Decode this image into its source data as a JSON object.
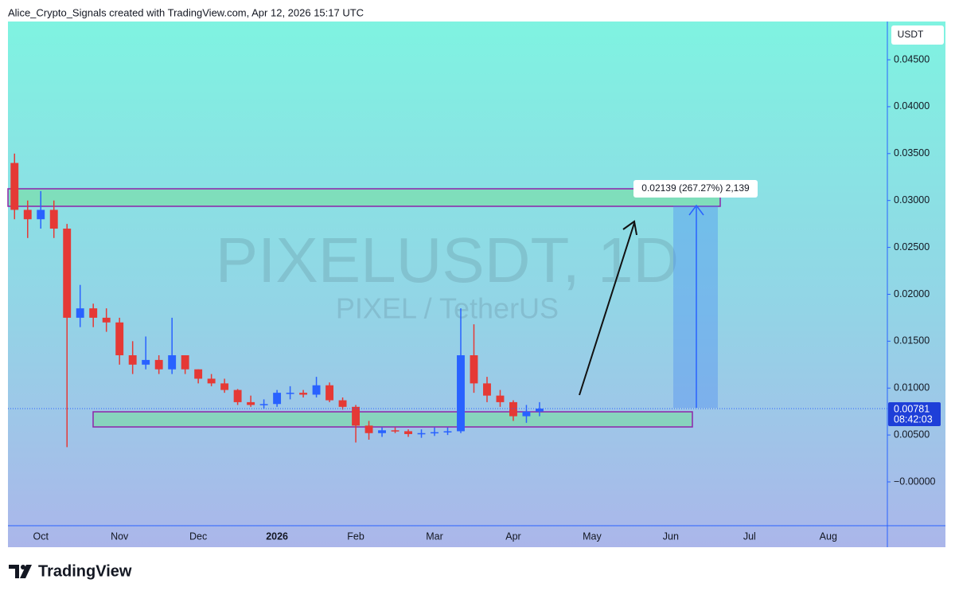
{
  "header": "Alice_Crypto_Signals created with TradingView.com, Apr 12, 2026 15:17 UTC",
  "footer_logo": "TradingView",
  "chart_data": {
    "type": "candlestick",
    "watermark_symbol": "PIXELUSDT, 1D",
    "watermark_name": "PIXEL / TetherUS",
    "currency": "USDT",
    "up_color": "#2962ff",
    "down_color": "#e53935",
    "grid": false,
    "categories": [
      null,
      null,
      "Oct",
      null,
      null,
      null,
      null,
      null,
      "Nov",
      null,
      null,
      null,
      null,
      null,
      "Dec",
      null,
      null,
      null,
      null,
      null,
      "2026",
      null,
      null,
      null,
      null,
      null,
      "Feb",
      null,
      null,
      null,
      null,
      null,
      "Mar",
      null,
      null,
      null,
      null,
      null,
      "Apr",
      null,
      null,
      null,
      null,
      null,
      "May",
      null,
      null,
      null,
      null,
      null,
      "Jun",
      null,
      null,
      null,
      null,
      null,
      "Jul",
      null,
      null,
      null,
      null,
      null,
      "Aug",
      null,
      null,
      null,
      null
    ],
    "open": [
      0.034,
      0.029,
      0.028,
      0.029,
      0.027,
      0.0175,
      0.0185,
      0.0175,
      0.017,
      0.0135,
      0.0125,
      0.013,
      0.012,
      0.0135,
      0.012,
      0.011,
      0.0105,
      0.0098,
      0.0085,
      0.0082,
      0.0083,
      0.0095,
      0.0095,
      0.0093,
      0.0103,
      0.0087,
      0.008,
      0.006,
      0.0052,
      0.0055,
      0.0054,
      0.0051,
      0.0052,
      0.0053,
      0.0054,
      0.0135,
      0.0105,
      0.0092,
      0.0085,
      0.007,
      0.0075,
      null,
      null,
      null,
      null,
      null,
      null,
      null,
      null,
      null,
      null,
      null,
      null,
      null,
      null,
      null,
      null,
      null,
      null,
      null,
      null,
      null,
      null,
      null,
      null,
      null,
      null
    ],
    "high": [
      0.035,
      0.03,
      0.031,
      0.03,
      0.0275,
      0.021,
      0.019,
      0.0185,
      0.0175,
      0.015,
      0.0155,
      0.0135,
      0.0175,
      0.0135,
      0.012,
      0.0115,
      0.011,
      0.0099,
      0.0092,
      0.0088,
      0.0098,
      0.0102,
      0.0098,
      0.0112,
      0.0106,
      0.009,
      0.0082,
      0.0065,
      0.0058,
      0.0058,
      0.0056,
      0.0056,
      0.0058,
      0.0058,
      0.0185,
      0.0168,
      0.0112,
      0.0098,
      0.0087,
      0.0082,
      0.0085,
      null,
      null,
      null,
      null,
      null,
      null,
      null,
      null,
      null,
      null,
      null,
      null,
      null,
      null,
      null,
      null,
      null,
      null,
      null,
      null,
      null,
      null,
      null,
      null,
      null,
      null
    ],
    "low": [
      0.028,
      0.026,
      0.027,
      0.026,
      0.0037,
      0.0165,
      0.0165,
      0.016,
      0.0125,
      0.0115,
      0.012,
      0.0115,
      0.0115,
      0.0115,
      0.0105,
      0.0102,
      0.0095,
      0.0082,
      0.008,
      0.0078,
      0.008,
      0.0088,
      0.009,
      0.009,
      0.0085,
      0.0077,
      0.0042,
      0.0045,
      0.0048,
      0.0052,
      0.0048,
      0.0047,
      0.0049,
      0.005,
      0.0052,
      0.0095,
      0.0085,
      0.008,
      0.0065,
      0.0063,
      0.007,
      null,
      null,
      null,
      null,
      null,
      null,
      null,
      null,
      null,
      null,
      null,
      null,
      null,
      null,
      null,
      null,
      null,
      null,
      null,
      null,
      null,
      null,
      null,
      null,
      null,
      null
    ],
    "close": [
      0.029,
      0.028,
      0.029,
      0.027,
      0.0175,
      0.0185,
      0.0175,
      0.017,
      0.0135,
      0.0125,
      0.013,
      0.012,
      0.0135,
      0.012,
      0.011,
      0.0105,
      0.0098,
      0.0085,
      0.0082,
      0.0083,
      0.0095,
      0.0095,
      0.0093,
      0.0103,
      0.0087,
      0.008,
      0.006,
      0.0052,
      0.0055,
      0.0054,
      0.0051,
      0.0052,
      0.0053,
      0.0054,
      0.0135,
      0.0105,
      0.0092,
      0.0085,
      0.007,
      0.0075,
      0.00781,
      null,
      null,
      null,
      null,
      null,
      null,
      null,
      null,
      null,
      null,
      null,
      null,
      null,
      null,
      null,
      null,
      null,
      null,
      null,
      null,
      null,
      null,
      null,
      null,
      null,
      null
    ],
    "ylim": [
      -0.00467,
      0.04908
    ],
    "yticks": [
      {
        "value": 0.045,
        "label": "0.04500"
      },
      {
        "value": 0.04,
        "label": "0.04000"
      },
      {
        "value": 0.035,
        "label": "0.03500"
      },
      {
        "value": 0.03,
        "label": "0.03000"
      },
      {
        "value": 0.025,
        "label": "0.02500"
      },
      {
        "value": 0.02,
        "label": "0.02000"
      },
      {
        "value": 0.015,
        "label": "0.01500"
      },
      {
        "value": 0.01,
        "label": "0.01000"
      },
      {
        "value": 0.005,
        "label": "0.00500"
      },
      {
        "value": 0,
        "label": "−0.00000"
      }
    ],
    "current_price": 0.00781,
    "countdown": "08:42:03",
    "measure_label": "0.02139 (267.27%) 2,139"
  }
}
